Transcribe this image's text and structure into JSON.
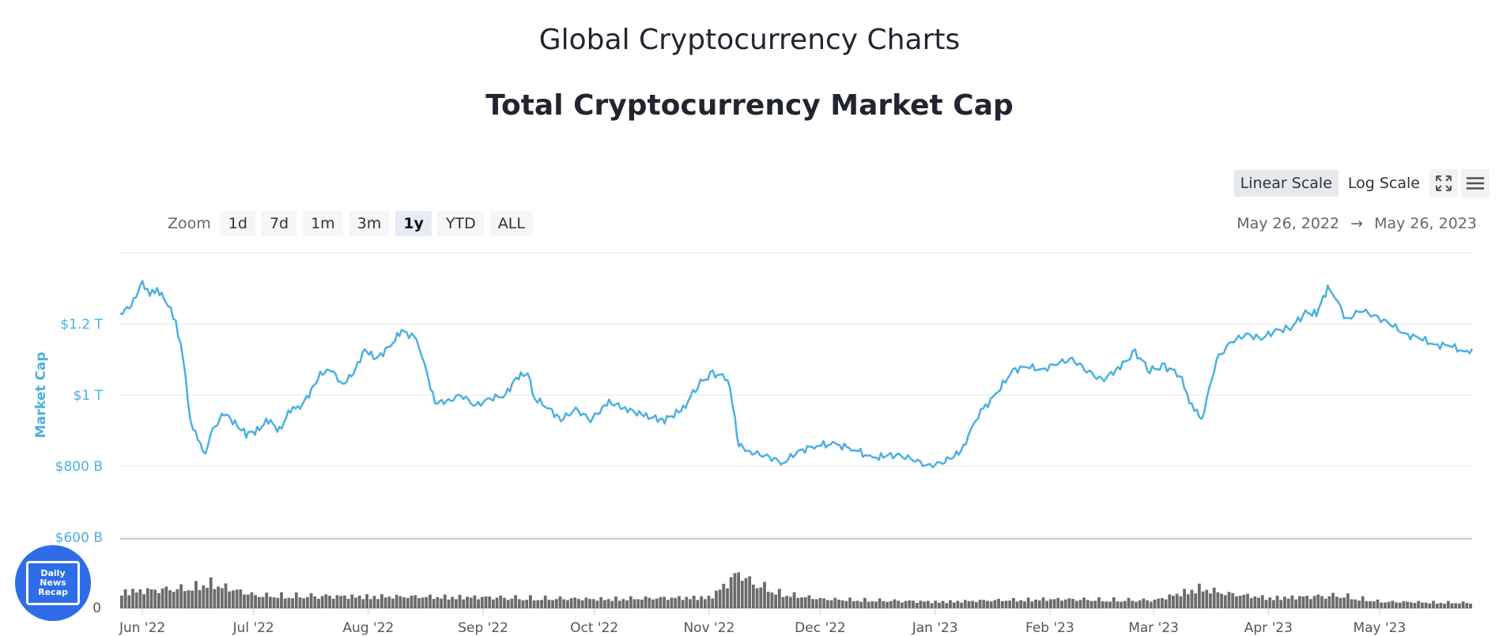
{
  "page": {
    "title": "Global Cryptocurrency Charts",
    "chart_title": "Total Cryptocurrency Market Cap"
  },
  "toolbar": {
    "linear_label": "Linear Scale",
    "log_label": "Log Scale",
    "fullscreen_icon": "fullscreen-icon",
    "menu_icon": "hamburger-menu-icon"
  },
  "zoom": {
    "label": "Zoom",
    "buttons": [
      "1d",
      "7d",
      "1m",
      "3m",
      "1y",
      "YTD",
      "ALL"
    ],
    "active": "1y"
  },
  "range": {
    "from": "May 26, 2022",
    "arrow": "→",
    "to": "May 26, 2023"
  },
  "logo": {
    "line1": "Daily",
    "line2": "News",
    "line3": "Recap"
  },
  "colors": {
    "line": "#4db0e0",
    "volume": "#6b6b6b",
    "grid": "#e6e6e6"
  },
  "chart_data": {
    "type": "line",
    "title": "Total Cryptocurrency Market Cap",
    "ylabel": "Market Cap",
    "y_ticks": [
      "$600 B",
      "$800 B",
      "$1 T",
      "$1.2 T"
    ],
    "y_tick_values": [
      600,
      800,
      1000,
      1200
    ],
    "ylim": [
      600,
      1400
    ],
    "y_unit": "billion USD",
    "x_range": [
      "2022-05-26",
      "2023-05-26"
    ],
    "x_ticks": [
      "Jun '22",
      "Jul '22",
      "Aug '22",
      "Sep '22",
      "Oct '22",
      "Nov '22",
      "Dec '22",
      "Jan '23",
      "Feb '23",
      "Mar '23",
      "Apr '23",
      "May '23"
    ],
    "x_tick_dates": [
      "2022-06-01",
      "2022-07-01",
      "2022-08-01",
      "2022-09-01",
      "2022-10-01",
      "2022-11-01",
      "2022-12-01",
      "2023-01-01",
      "2023-02-01",
      "2023-03-01",
      "2023-04-01",
      "2023-05-01"
    ],
    "grid": true,
    "scale": "linear",
    "series": [
      {
        "name": "",
        "x": [
          "2022-05-26",
          "2022-05-29",
          "2022-06-01",
          "2022-06-03",
          "2022-06-05",
          "2022-06-08",
          "2022-06-10",
          "2022-06-12",
          "2022-06-14",
          "2022-06-16",
          "2022-06-18",
          "2022-06-20",
          "2022-06-23",
          "2022-06-26",
          "2022-06-29",
          "2022-07-02",
          "2022-07-05",
          "2022-07-08",
          "2022-07-11",
          "2022-07-13",
          "2022-07-16",
          "2022-07-19",
          "2022-07-22",
          "2022-07-25",
          "2022-07-28",
          "2022-07-31",
          "2022-08-03",
          "2022-08-07",
          "2022-08-10",
          "2022-08-14",
          "2022-08-16",
          "2022-08-19",
          "2022-08-22",
          "2022-08-26",
          "2022-08-30",
          "2022-09-03",
          "2022-09-07",
          "2022-09-10",
          "2022-09-13",
          "2022-09-15",
          "2022-09-19",
          "2022-09-22",
          "2022-09-26",
          "2022-09-30",
          "2022-10-05",
          "2022-10-10",
          "2022-10-15",
          "2022-10-20",
          "2022-10-25",
          "2022-10-29",
          "2022-11-02",
          "2022-11-06",
          "2022-11-08",
          "2022-11-09",
          "2022-11-12",
          "2022-11-16",
          "2022-11-21",
          "2022-11-25",
          "2022-11-30",
          "2022-12-05",
          "2022-12-10",
          "2022-12-15",
          "2022-12-18",
          "2022-12-22",
          "2022-12-26",
          "2022-12-30",
          "2023-01-03",
          "2023-01-08",
          "2023-01-12",
          "2023-01-14",
          "2023-01-18",
          "2023-01-22",
          "2023-01-26",
          "2023-01-30",
          "2023-02-03",
          "2023-02-07",
          "2023-02-11",
          "2023-02-15",
          "2023-02-20",
          "2023-02-24",
          "2023-02-28",
          "2023-03-04",
          "2023-03-08",
          "2023-03-10",
          "2023-03-12",
          "2023-03-14",
          "2023-03-18",
          "2023-03-22",
          "2023-03-26",
          "2023-03-30",
          "2023-04-03",
          "2023-04-07",
          "2023-04-11",
          "2023-04-14",
          "2023-04-17",
          "2023-04-19",
          "2023-04-22",
          "2023-04-26",
          "2023-04-30",
          "2023-05-04",
          "2023-05-08",
          "2023-05-12",
          "2023-05-16",
          "2023-05-20",
          "2023-05-24",
          "2023-05-26"
        ],
        "values": [
          1230,
          1250,
          1320,
          1280,
          1300,
          1250,
          1210,
          1100,
          930,
          870,
          840,
          900,
          950,
          920,
          890,
          900,
          930,
          900,
          960,
          960,
          1000,
          1060,
          1070,
          1030,
          1060,
          1130,
          1100,
          1140,
          1180,
          1160,
          1090,
          980,
          980,
          1000,
          970,
          990,
          1000,
          1050,
          1060,
          990,
          960,
          930,
          960,
          930,
          980,
          960,
          940,
          930,
          960,
          1030,
          1060,
          1050,
          930,
          860,
          840,
          830,
          810,
          840,
          860,
          860,
          850,
          820,
          830,
          830,
          820,
          800,
          810,
          840,
          930,
          960,
          1010,
          1070,
          1080,
          1070,
          1090,
          1100,
          1070,
          1040,
          1080,
          1120,
          1070,
          1080,
          1060,
          1000,
          960,
          930,
          1100,
          1150,
          1170,
          1160,
          1180,
          1190,
          1230,
          1230,
          1300,
          1280,
          1210,
          1240,
          1220,
          1200,
          1170,
          1160,
          1140,
          1140,
          1120,
          1130
        ]
      }
    ],
    "volume": {
      "scale_min_label": "0",
      "x": [
        "2022-05-26",
        "2022-06-14",
        "2022-06-18",
        "2022-07-01",
        "2022-08-01",
        "2022-09-01",
        "2022-10-01",
        "2022-11-01",
        "2022-11-09",
        "2022-11-11",
        "2022-11-20",
        "2022-12-01",
        "2023-01-01",
        "2023-02-01",
        "2023-03-01",
        "2023-03-13",
        "2023-03-20",
        "2023-04-01",
        "2023-04-20",
        "2023-05-01",
        "2023-05-26"
      ],
      "values": [
        0.45,
        0.55,
        0.7,
        0.35,
        0.32,
        0.3,
        0.25,
        0.3,
        1.0,
        0.75,
        0.4,
        0.25,
        0.18,
        0.25,
        0.22,
        0.55,
        0.4,
        0.28,
        0.35,
        0.18,
        0.15
      ]
    }
  }
}
